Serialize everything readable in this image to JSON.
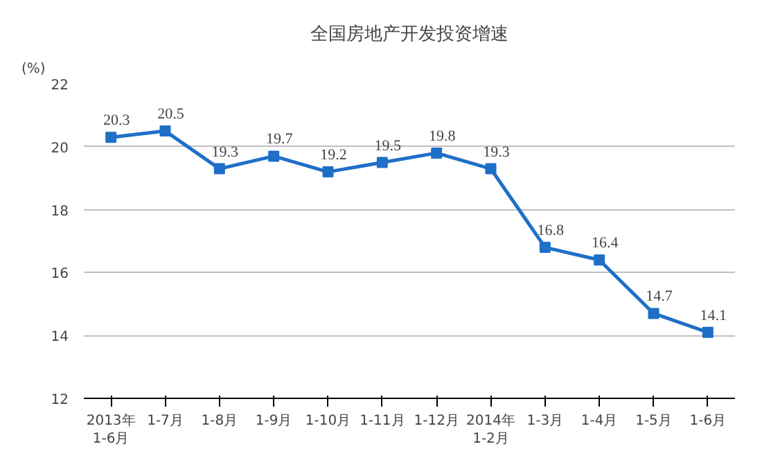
{
  "chart_data": {
    "type": "line",
    "title": "全国房地产开发投资增速",
    "ylabel": "(%)",
    "categories": [
      "2013年\n1-6月",
      "1-7月",
      "1-8月",
      "1-9月",
      "1-10月",
      "1-11月",
      "1-12月",
      "2014年\n1-2月",
      "1-3月",
      "1-4月",
      "1-5月",
      "1-6月"
    ],
    "series": [
      {
        "color": "#1f6fc8",
        "values": [
          20.3,
          20.5,
          19.3,
          19.7,
          19.2,
          19.5,
          19.8,
          19.3,
          16.8,
          16.4,
          14.7,
          14.1
        ]
      }
    ],
    "ylim": [
      12,
      22
    ],
    "yticks": [
      12,
      14,
      16,
      18,
      20,
      22
    ],
    "grid": "y",
    "marker": "square",
    "line_style": "solid",
    "data_labels": true
  }
}
